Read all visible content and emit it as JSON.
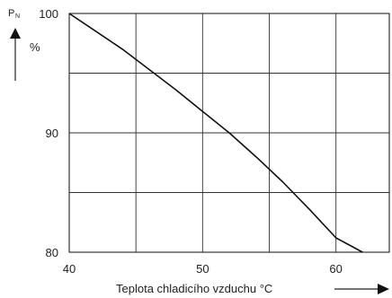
{
  "chart_data": {
    "type": "line",
    "title": "",
    "xlabel": "Teplota chladicího vzduchu °C",
    "ylabel": "",
    "y_symbol": "P",
    "y_symbol_subscript": "N",
    "y_unit": "%",
    "xlim": [
      40,
      64
    ],
    "ylim": [
      80,
      100
    ],
    "x_ticks": [
      40,
      50,
      60
    ],
    "y_ticks": [
      80,
      90,
      100
    ],
    "x_tick_labels": [
      "40",
      "50",
      "60"
    ],
    "y_tick_labels": [
      "80",
      "90",
      "100"
    ],
    "grid": true,
    "series": [
      {
        "x": [
          40,
          42,
          44,
          46,
          48,
          50,
          52,
          54,
          56,
          58,
          60,
          62
        ],
        "y": [
          100,
          98.5,
          97.0,
          95.3,
          93.6,
          91.8,
          90.0,
          88.0,
          85.9,
          83.6,
          81.2,
          80.0
        ]
      }
    ]
  }
}
